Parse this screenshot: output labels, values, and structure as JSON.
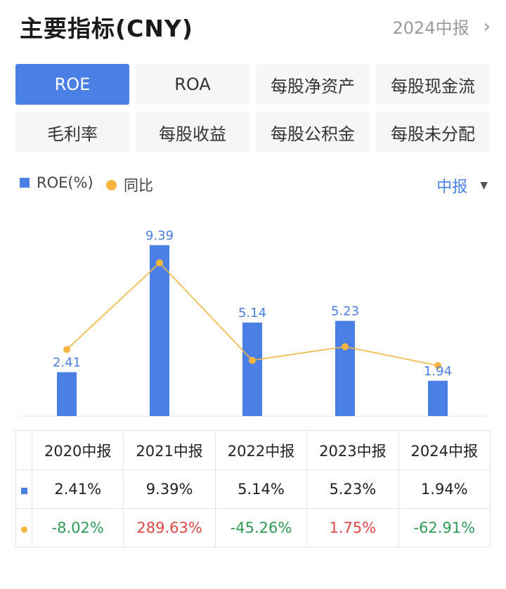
{
  "header": {
    "title": "主要指标(CNY)",
    "period_link": "2024中报"
  },
  "tabs": [
    {
      "label": "ROE",
      "active": true
    },
    {
      "label": "ROA",
      "active": false
    },
    {
      "label": "每股净资产",
      "active": false
    },
    {
      "label": "每股现金流",
      "active": false
    },
    {
      "label": "毛利率",
      "active": false
    },
    {
      "label": "每股收益",
      "active": false
    },
    {
      "label": "每股公积金",
      "active": false
    },
    {
      "label": "每股未分配",
      "active": false
    }
  ],
  "legend": {
    "bar_label": "ROE(%)",
    "line_label": "同比",
    "dropdown": "中报"
  },
  "colors": {
    "accent": "#4a7fe6",
    "line": "#f5b53f",
    "positive": "#e04646",
    "negative": "#2f9a55"
  },
  "chart_data": {
    "type": "bar",
    "categories": [
      "2020中报",
      "2021中报",
      "2022中报",
      "2023中报",
      "2024中报"
    ],
    "series": [
      {
        "name": "ROE(%)",
        "type": "bar",
        "values": [
          2.41,
          9.39,
          5.14,
          5.23,
          1.94
        ]
      },
      {
        "name": "同比",
        "type": "line",
        "values": [
          -8.02,
          289.63,
          -45.26,
          1.75,
          -62.91
        ]
      }
    ],
    "data_labels": [
      "2.41",
      "9.39",
      "5.14",
      "5.23",
      "1.94"
    ],
    "legend_position": "top-left"
  },
  "table": {
    "headers": [
      "2020中报",
      "2021中报",
      "2022中报",
      "2023中报",
      "2024中报"
    ],
    "roe_row": [
      "2.41%",
      "9.39%",
      "5.14%",
      "5.23%",
      "1.94%"
    ],
    "yoy_row": [
      "-8.02%",
      "289.63%",
      "-45.26%",
      "1.75%",
      "-62.91%"
    ]
  }
}
